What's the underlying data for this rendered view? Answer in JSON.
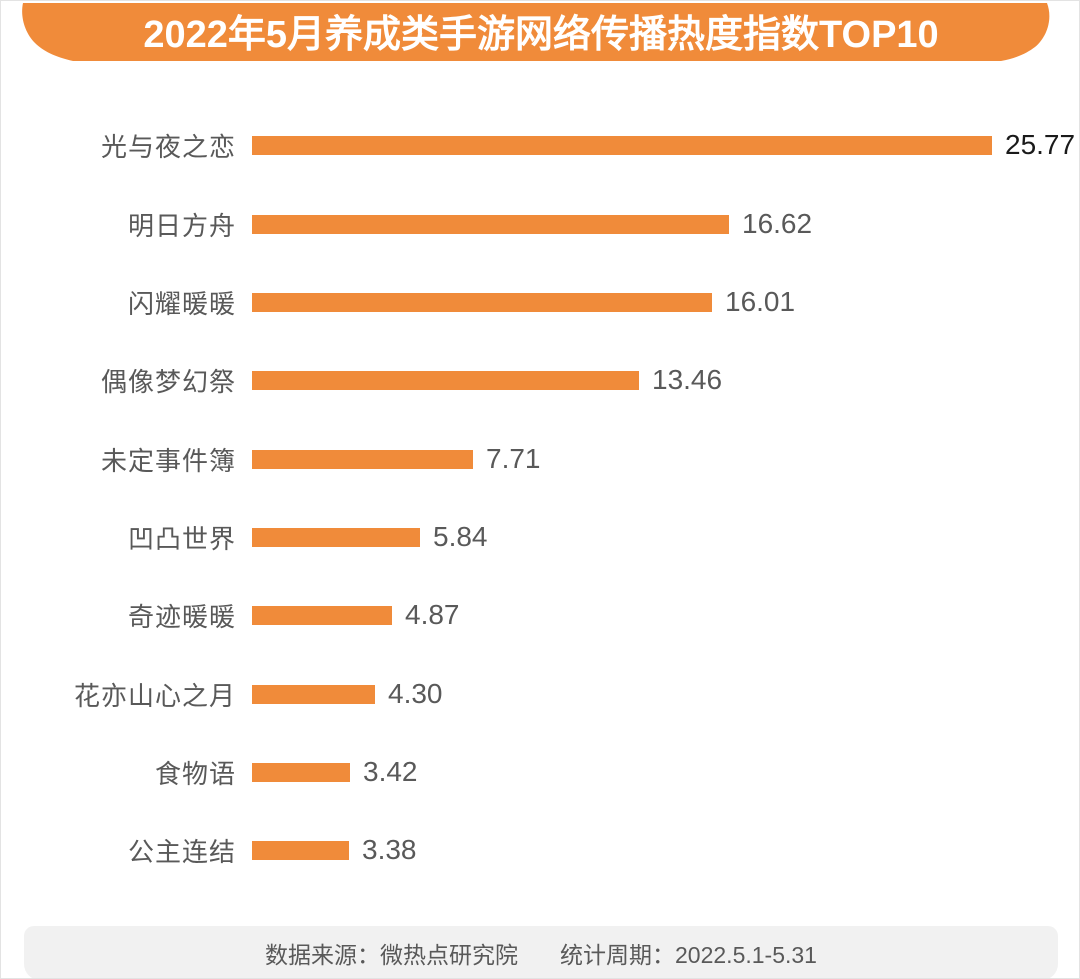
{
  "banner": {
    "title": "2022年5月养成类手游网络传播热度指数TOP10"
  },
  "chart_data": {
    "type": "bar",
    "orientation": "horizontal",
    "title": "2022年5月养成类手游网络传播热度指数TOP10",
    "xlabel": "",
    "ylabel": "",
    "xlim": [
      0,
      26
    ],
    "grid": false,
    "legend": "none",
    "categories": [
      "光与夜之恋",
      "明日方舟",
      "闪耀暖暖",
      "偶像梦幻祭",
      "未定事件簿",
      "凹凸世界",
      "奇迹暖暖",
      "花亦山心之月",
      "食物语",
      "公主连结"
    ],
    "values": [
      25.77,
      16.62,
      16.01,
      13.46,
      7.71,
      5.84,
      4.87,
      4.3,
      3.42,
      3.38
    ],
    "value_labels": [
      "25.77",
      "16.62",
      "16.01",
      "13.46",
      "7.71",
      "5.84",
      "4.87",
      "4.30",
      "3.42",
      "3.38"
    ],
    "bar_color": "#F08B3A",
    "value_label_colors": [
      "#1a1a1a",
      "#595959",
      "#595959",
      "#595959",
      "#595959",
      "#595959",
      "#595959",
      "#595959",
      "#595959",
      "#595959"
    ]
  },
  "footer": {
    "source": "数据来源：微热点研究院",
    "period": "统计周期：2022.5.1-5.31"
  },
  "colors": {
    "orange": "#F08B3A",
    "label_gray": "#595959",
    "value_dark": "#1a1a1a",
    "footer_bg": "#f1f1f1",
    "footer_text": "#595959",
    "page_border": "#e3e3e3"
  }
}
